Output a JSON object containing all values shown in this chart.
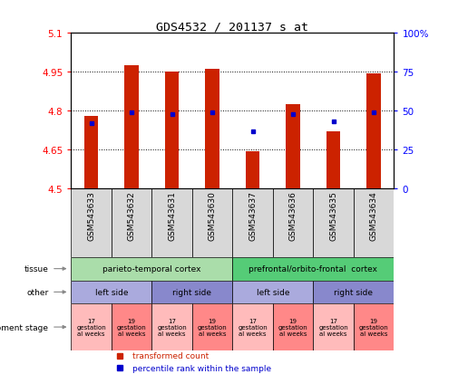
{
  "title": "GDS4532 / 201137_s_at",
  "samples": [
    "GSM543633",
    "GSM543632",
    "GSM543631",
    "GSM543630",
    "GSM543637",
    "GSM543636",
    "GSM543635",
    "GSM543634"
  ],
  "bar_values": [
    4.78,
    4.975,
    4.95,
    4.96,
    4.645,
    4.825,
    4.72,
    4.945
  ],
  "dot_values": [
    42,
    49,
    48,
    49,
    37,
    48,
    43,
    49
  ],
  "ylim": [
    4.5,
    5.1
  ],
  "yticks_left": [
    4.5,
    4.65,
    4.8,
    4.95,
    5.1
  ],
  "yticks_right": [
    0,
    25,
    50,
    75,
    100
  ],
  "bar_color": "#cc2200",
  "dot_color": "#0000cc",
  "bg_color": "#ffffff",
  "tissue_row": [
    {
      "label": "parieto-temporal cortex",
      "start": 0,
      "end": 4,
      "color": "#aaddaa"
    },
    {
      "label": "prefrontal/orbito-frontal  cortex",
      "start": 4,
      "end": 8,
      "color": "#55cc77"
    }
  ],
  "other_row": [
    {
      "label": "left side",
      "start": 0,
      "end": 2,
      "color": "#aaaadd"
    },
    {
      "label": "right side",
      "start": 2,
      "end": 4,
      "color": "#8888cc"
    },
    {
      "label": "left side",
      "start": 4,
      "end": 6,
      "color": "#aaaadd"
    },
    {
      "label": "right side",
      "start": 6,
      "end": 8,
      "color": "#8888cc"
    }
  ],
  "dev_row": [
    {
      "label": "17\ngestation\nal weeks",
      "start": 0,
      "end": 1,
      "color": "#ffbbbb"
    },
    {
      "label": "19\ngestation\nal weeks",
      "start": 1,
      "end": 2,
      "color": "#ff8888"
    },
    {
      "label": "17\ngestation\nal weeks",
      "start": 2,
      "end": 3,
      "color": "#ffbbbb"
    },
    {
      "label": "19\ngestation\nal weeks",
      "start": 3,
      "end": 4,
      "color": "#ff8888"
    },
    {
      "label": "17\ngestation\nal weeks",
      "start": 4,
      "end": 5,
      "color": "#ffbbbb"
    },
    {
      "label": "19\ngestation\nal weeks",
      "start": 5,
      "end": 6,
      "color": "#ff8888"
    },
    {
      "label": "17\ngestation\nal weeks",
      "start": 6,
      "end": 7,
      "color": "#ffbbbb"
    },
    {
      "label": "19\ngestation\nal weeks",
      "start": 7,
      "end": 8,
      "color": "#ff8888"
    }
  ],
  "row_labels": [
    "tissue",
    "other",
    "development stage"
  ],
  "legend_items": [
    {
      "label": "transformed count",
      "color": "#cc2200"
    },
    {
      "label": "percentile rank within the sample",
      "color": "#0000cc"
    }
  ]
}
